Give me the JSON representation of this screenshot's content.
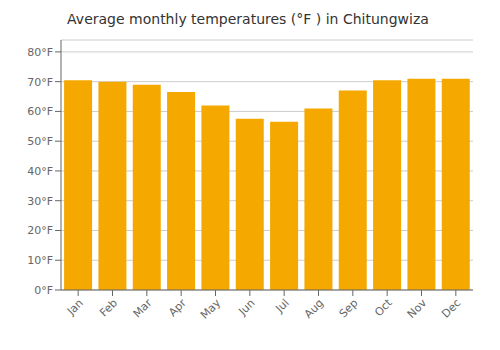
{
  "chart_data": {
    "type": "bar",
    "title": "Average monthly temperatures (°F ) in Chitungwiza",
    "categories": [
      "Jan",
      "Feb",
      "Mar",
      "Apr",
      "May",
      "Jun",
      "Jul",
      "Aug",
      "Sep",
      "Oct",
      "Nov",
      "Dec"
    ],
    "values": [
      70.5,
      70.0,
      69.0,
      66.5,
      62.0,
      57.5,
      56.5,
      61.0,
      67.0,
      70.5,
      71.0,
      71.0
    ],
    "color": "#F5A800",
    "ylim": [
      0,
      84
    ],
    "yticks": [
      {
        "value": 0,
        "label": "0°F"
      },
      {
        "value": 10,
        "label": "10°F"
      },
      {
        "value": 20,
        "label": "20°F"
      },
      {
        "value": 30,
        "label": "30°F"
      },
      {
        "value": 40,
        "label": "40°F"
      },
      {
        "value": 50,
        "label": "50°F"
      },
      {
        "value": 60,
        "label": "60°F"
      },
      {
        "value": 70,
        "label": "70°F"
      },
      {
        "value": 80,
        "label": "80°F"
      }
    ],
    "grid": true
  }
}
